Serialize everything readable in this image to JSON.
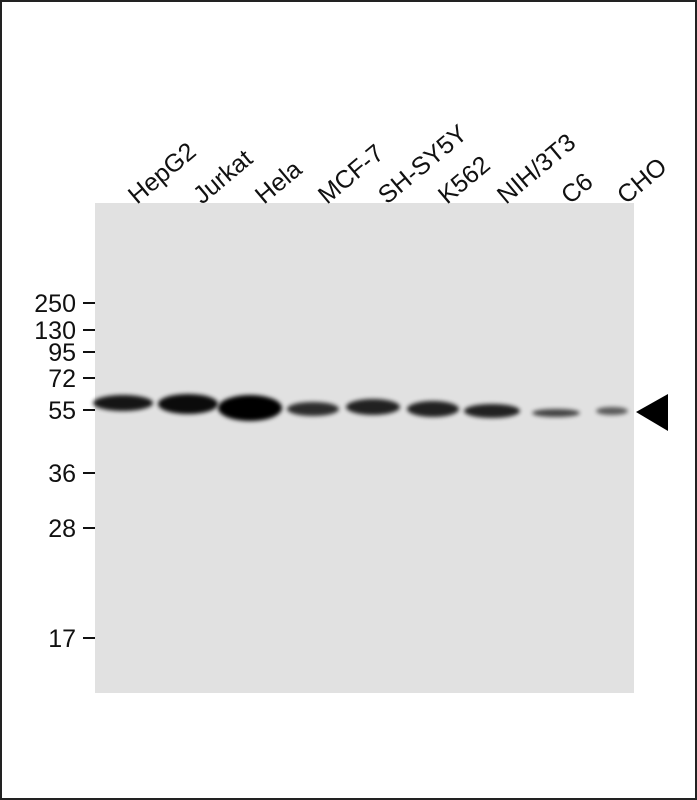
{
  "lanes": [
    "HepG2",
    "Jurkat",
    "Hela",
    "MCF-7",
    "SH-SY5Y",
    "K562",
    "NIH/3T3",
    "C6",
    "CHO"
  ],
  "markers": [
    "250",
    "130",
    "95",
    "72",
    "55",
    "36",
    "28",
    "17"
  ]
}
